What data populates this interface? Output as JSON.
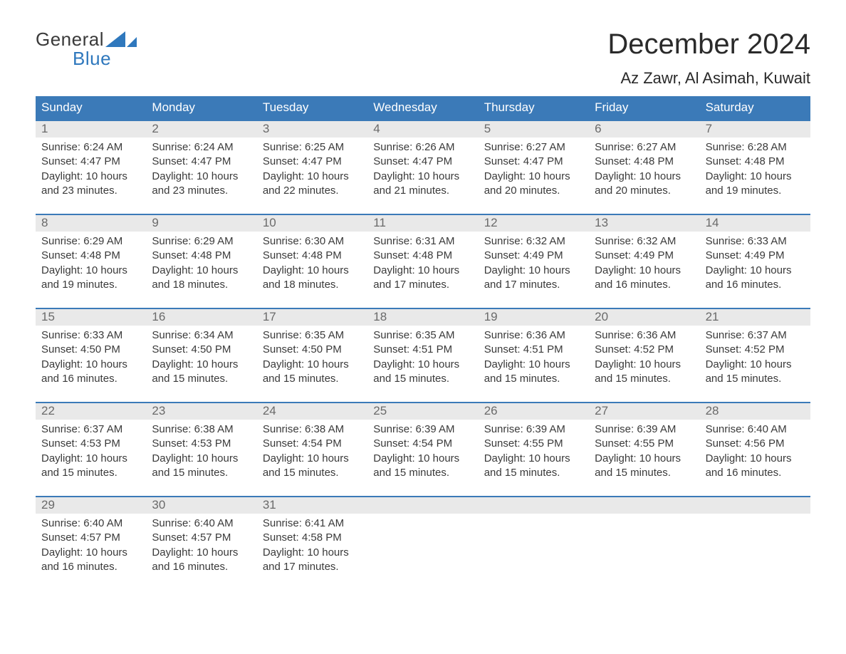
{
  "logo": {
    "line1": "General",
    "line2": "Blue",
    "accent_color": "#2f78bd"
  },
  "title": "December 2024",
  "location": "Az Zawr, Al Asimah, Kuwait",
  "colors": {
    "header_bg": "#3b7ab8",
    "header_text": "#ffffff",
    "daynum_bg": "#e9e9e9",
    "daynum_text": "#6a6a6a",
    "body_text": "#3a3a3a",
    "week_border": "#3b7ab8"
  },
  "weekdays": [
    "Sunday",
    "Monday",
    "Tuesday",
    "Wednesday",
    "Thursday",
    "Friday",
    "Saturday"
  ],
  "weeks": [
    [
      {
        "n": "1",
        "sunrise": "6:24 AM",
        "sunset": "4:47 PM",
        "dl": "10 hours and 23 minutes."
      },
      {
        "n": "2",
        "sunrise": "6:24 AM",
        "sunset": "4:47 PM",
        "dl": "10 hours and 23 minutes."
      },
      {
        "n": "3",
        "sunrise": "6:25 AM",
        "sunset": "4:47 PM",
        "dl": "10 hours and 22 minutes."
      },
      {
        "n": "4",
        "sunrise": "6:26 AM",
        "sunset": "4:47 PM",
        "dl": "10 hours and 21 minutes."
      },
      {
        "n": "5",
        "sunrise": "6:27 AM",
        "sunset": "4:47 PM",
        "dl": "10 hours and 20 minutes."
      },
      {
        "n": "6",
        "sunrise": "6:27 AM",
        "sunset": "4:48 PM",
        "dl": "10 hours and 20 minutes."
      },
      {
        "n": "7",
        "sunrise": "6:28 AM",
        "sunset": "4:48 PM",
        "dl": "10 hours and 19 minutes."
      }
    ],
    [
      {
        "n": "8",
        "sunrise": "6:29 AM",
        "sunset": "4:48 PM",
        "dl": "10 hours and 19 minutes."
      },
      {
        "n": "9",
        "sunrise": "6:29 AM",
        "sunset": "4:48 PM",
        "dl": "10 hours and 18 minutes."
      },
      {
        "n": "10",
        "sunrise": "6:30 AM",
        "sunset": "4:48 PM",
        "dl": "10 hours and 18 minutes."
      },
      {
        "n": "11",
        "sunrise": "6:31 AM",
        "sunset": "4:48 PM",
        "dl": "10 hours and 17 minutes."
      },
      {
        "n": "12",
        "sunrise": "6:32 AM",
        "sunset": "4:49 PM",
        "dl": "10 hours and 17 minutes."
      },
      {
        "n": "13",
        "sunrise": "6:32 AM",
        "sunset": "4:49 PM",
        "dl": "10 hours and 16 minutes."
      },
      {
        "n": "14",
        "sunrise": "6:33 AM",
        "sunset": "4:49 PM",
        "dl": "10 hours and 16 minutes."
      }
    ],
    [
      {
        "n": "15",
        "sunrise": "6:33 AM",
        "sunset": "4:50 PM",
        "dl": "10 hours and 16 minutes."
      },
      {
        "n": "16",
        "sunrise": "6:34 AM",
        "sunset": "4:50 PM",
        "dl": "10 hours and 15 minutes."
      },
      {
        "n": "17",
        "sunrise": "6:35 AM",
        "sunset": "4:50 PM",
        "dl": "10 hours and 15 minutes."
      },
      {
        "n": "18",
        "sunrise": "6:35 AM",
        "sunset": "4:51 PM",
        "dl": "10 hours and 15 minutes."
      },
      {
        "n": "19",
        "sunrise": "6:36 AM",
        "sunset": "4:51 PM",
        "dl": "10 hours and 15 minutes."
      },
      {
        "n": "20",
        "sunrise": "6:36 AM",
        "sunset": "4:52 PM",
        "dl": "10 hours and 15 minutes."
      },
      {
        "n": "21",
        "sunrise": "6:37 AM",
        "sunset": "4:52 PM",
        "dl": "10 hours and 15 minutes."
      }
    ],
    [
      {
        "n": "22",
        "sunrise": "6:37 AM",
        "sunset": "4:53 PM",
        "dl": "10 hours and 15 minutes."
      },
      {
        "n": "23",
        "sunrise": "6:38 AM",
        "sunset": "4:53 PM",
        "dl": "10 hours and 15 minutes."
      },
      {
        "n": "24",
        "sunrise": "6:38 AM",
        "sunset": "4:54 PM",
        "dl": "10 hours and 15 minutes."
      },
      {
        "n": "25",
        "sunrise": "6:39 AM",
        "sunset": "4:54 PM",
        "dl": "10 hours and 15 minutes."
      },
      {
        "n": "26",
        "sunrise": "6:39 AM",
        "sunset": "4:55 PM",
        "dl": "10 hours and 15 minutes."
      },
      {
        "n": "27",
        "sunrise": "6:39 AM",
        "sunset": "4:55 PM",
        "dl": "10 hours and 15 minutes."
      },
      {
        "n": "28",
        "sunrise": "6:40 AM",
        "sunset": "4:56 PM",
        "dl": "10 hours and 16 minutes."
      }
    ],
    [
      {
        "n": "29",
        "sunrise": "6:40 AM",
        "sunset": "4:57 PM",
        "dl": "10 hours and 16 minutes."
      },
      {
        "n": "30",
        "sunrise": "6:40 AM",
        "sunset": "4:57 PM",
        "dl": "10 hours and 16 minutes."
      },
      {
        "n": "31",
        "sunrise": "6:41 AM",
        "sunset": "4:58 PM",
        "dl": "10 hours and 17 minutes."
      },
      null,
      null,
      null,
      null
    ]
  ],
  "labels": {
    "sunrise_prefix": "Sunrise: ",
    "sunset_prefix": "Sunset: ",
    "daylight_prefix": "Daylight: "
  }
}
